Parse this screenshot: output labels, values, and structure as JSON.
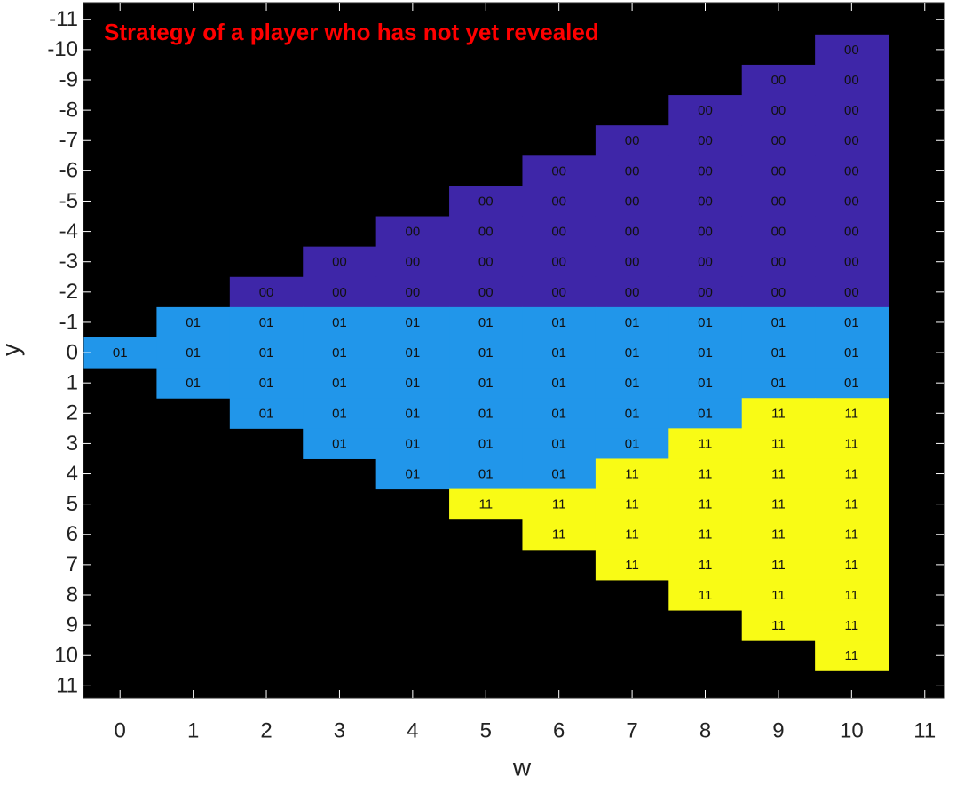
{
  "chart_data": {
    "type": "heatmap",
    "title": "Strategy of a player who has not yet revealed",
    "x_label": "w",
    "y_label": "y",
    "x": [
      0,
      1,
      2,
      3,
      4,
      5,
      6,
      7,
      8,
      9,
      10
    ],
    "y": [
      -10,
      -9,
      -8,
      -7,
      -6,
      -5,
      -4,
      -3,
      -2,
      -1,
      0,
      1,
      2,
      3,
      4,
      5,
      6,
      7,
      8,
      9,
      10
    ],
    "z": [
      [
        null,
        null,
        null,
        null,
        null,
        null,
        null,
        null,
        null,
        null,
        "00"
      ],
      [
        null,
        null,
        null,
        null,
        null,
        null,
        null,
        null,
        null,
        "00",
        "00"
      ],
      [
        null,
        null,
        null,
        null,
        null,
        null,
        null,
        null,
        "00",
        "00",
        "00"
      ],
      [
        null,
        null,
        null,
        null,
        null,
        null,
        null,
        "00",
        "00",
        "00",
        "00"
      ],
      [
        null,
        null,
        null,
        null,
        null,
        null,
        "00",
        "00",
        "00",
        "00",
        "00"
      ],
      [
        null,
        null,
        null,
        null,
        null,
        "00",
        "00",
        "00",
        "00",
        "00",
        "00"
      ],
      [
        null,
        null,
        null,
        null,
        "00",
        "00",
        "00",
        "00",
        "00",
        "00",
        "00"
      ],
      [
        null,
        null,
        null,
        "00",
        "00",
        "00",
        "00",
        "00",
        "00",
        "00",
        "00"
      ],
      [
        null,
        null,
        "00",
        "00",
        "00",
        "00",
        "00",
        "00",
        "00",
        "00",
        "00"
      ],
      [
        null,
        "01",
        "01",
        "01",
        "01",
        "01",
        "01",
        "01",
        "01",
        "01",
        "01"
      ],
      [
        "01",
        "01",
        "01",
        "01",
        "01",
        "01",
        "01",
        "01",
        "01",
        "01",
        "01"
      ],
      [
        null,
        "01",
        "01",
        "01",
        "01",
        "01",
        "01",
        "01",
        "01",
        "01",
        "01"
      ],
      [
        null,
        null,
        "01",
        "01",
        "01",
        "01",
        "01",
        "01",
        "01",
        "11",
        "11"
      ],
      [
        null,
        null,
        null,
        "01",
        "01",
        "01",
        "01",
        "01",
        "11",
        "11",
        "11"
      ],
      [
        null,
        null,
        null,
        null,
        "01",
        "01",
        "01",
        "11",
        "11",
        "11",
        "11"
      ],
      [
        null,
        null,
        null,
        null,
        null,
        "11",
        "11",
        "11",
        "11",
        "11",
        "11"
      ],
      [
        null,
        null,
        null,
        null,
        null,
        null,
        "11",
        "11",
        "11",
        "11",
        "11"
      ],
      [
        null,
        null,
        null,
        null,
        null,
        null,
        null,
        "11",
        "11",
        "11",
        "11"
      ],
      [
        null,
        null,
        null,
        null,
        null,
        null,
        null,
        null,
        "11",
        "11",
        "11"
      ],
      [
        null,
        null,
        null,
        null,
        null,
        null,
        null,
        null,
        null,
        "11",
        "11"
      ],
      [
        null,
        null,
        null,
        null,
        null,
        null,
        null,
        null,
        null,
        null,
        "11"
      ]
    ],
    "colors": {
      "00": "#3e26a8",
      "01": "#2196ea",
      "11": "#f9fb15"
    },
    "background": "#000000",
    "title_color": "#ff0000",
    "xlim": [
      -0.5,
      11.27
    ],
    "xticks": [
      0,
      1,
      2,
      3,
      4,
      5,
      6,
      7,
      8,
      9,
      10,
      11
    ],
    "ylim": [
      -11.55,
      11.4
    ],
    "y_reversed": true,
    "yticks": [
      -11,
      -10,
      -9,
      -8,
      -7,
      -6,
      -5,
      -4,
      -3,
      -2,
      -1,
      0,
      1,
      2,
      3,
      4,
      5,
      6,
      7,
      8,
      9,
      10,
      11
    ]
  }
}
